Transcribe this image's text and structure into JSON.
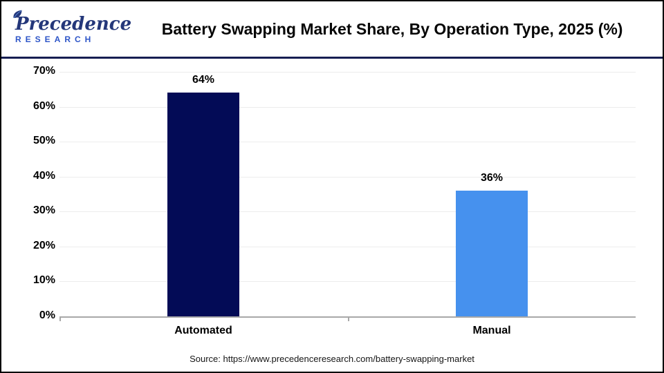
{
  "header": {
    "logo": {
      "line1": "Precedence",
      "line2": "RESEARCH"
    },
    "title": "Battery Swapping Market Share, By Operation Type, 2025 (%)"
  },
  "chart_data": {
    "type": "bar",
    "title": "Battery Swapping Market Share, By Operation Type, 2025 (%)",
    "categories": [
      "Automated",
      "Manual"
    ],
    "values": [
      64,
      36
    ],
    "value_labels": [
      "64%",
      "36%"
    ],
    "bar_colors": [
      "#030b56",
      "#4691ee"
    ],
    "xlabel": "",
    "ylabel": "",
    "ylim": [
      0,
      70
    ],
    "ytick_values": [
      0,
      10,
      20,
      30,
      40,
      50,
      60,
      70
    ],
    "ytick_labels": [
      "0%",
      "10%",
      "20%",
      "30%",
      "40%",
      "50%",
      "60%",
      "70%"
    ],
    "grid": true,
    "legend_position": "none"
  },
  "footer": {
    "source": "Source: https://www.precedenceresearch.com/battery-swapping-market"
  },
  "colors": {
    "bar_automated": "#030b56",
    "bar_manual": "#4691ee",
    "gridline": "#ececec",
    "baseline": "#a8a8a8",
    "header_rule": "#161d52",
    "logo_navy": "#24377a",
    "logo_blue": "#2d55c8",
    "title_text": "#060606"
  }
}
